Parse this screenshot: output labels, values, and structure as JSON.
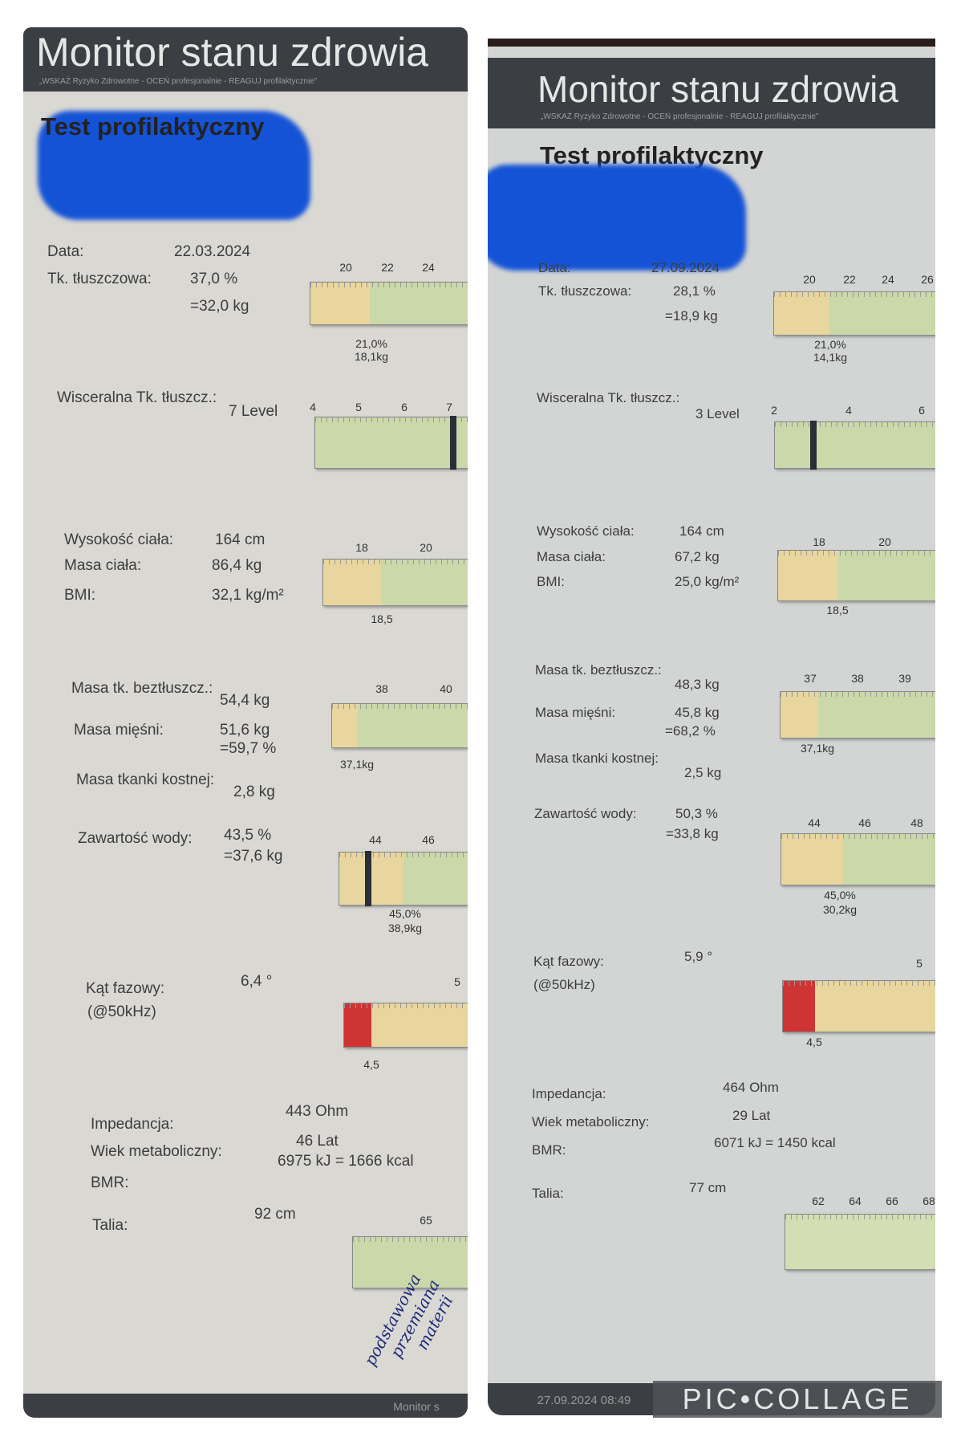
{
  "colors": {
    "header": "#3b3e43",
    "bar_yellow": "#e8d69e",
    "bar_green": "#cbd8aa",
    "bar_red": "#cf3434",
    "redaction": "#1553d6"
  },
  "watermark": "PIC•COLLAGE",
  "left": {
    "title": "Monitor stanu zdrowia",
    "tagline": "„WSKAŻ Ryzyko Zdrowotne - OCEŃ profesjonalnie - REAGUJ profilaktycznie”",
    "heading": "Test profilaktyczny",
    "labels": {
      "date": "Data:",
      "fat": "Tk. tłuszczowa:",
      "visceral": "Wisceralna Tk. tłuszcz.:",
      "height": "Wysokość ciała:",
      "mass": "Masa ciała:",
      "bmi": "BMI:",
      "lean": "Masa tk. beztłuszcz.:",
      "muscle": "Masa mięśni:",
      "bone": "Masa tkanki kostnej:",
      "water": "Zawartość wody:",
      "phase": "Kąt fazowy:",
      "phase_freq": "(@50kHz)",
      "impedance": "Impedancja:",
      "meta_age": "Wiek metaboliczny:",
      "bmr": "BMR:",
      "waist": "Talia:"
    },
    "values": {
      "date": "22.03.2024",
      "fat_pct": "37,0 %",
      "fat_kg": "=32,0 kg",
      "visceral": "7 Level",
      "height": "164 cm",
      "mass": "86,4 kg",
      "bmi": "32,1 kg/m²",
      "lean": "54,4 kg",
      "muscle_kg": "51,6 kg",
      "muscle_pct": "=59,7 %",
      "bone": "2,8 kg",
      "water_pct": "43,5 %",
      "water_kg": "=37,6 kg",
      "phase": "6,4 °",
      "impedance": "443 Ohm",
      "meta_age": "46 Lat",
      "bmr": "6975 kJ = 1666 kcal",
      "waist": "92 cm"
    },
    "scales": {
      "fat": {
        "ticks": [
          "20",
          "22",
          "24"
        ],
        "ref": "21,0%",
        "ref2": "18,1kg"
      },
      "visceral": {
        "ticks": [
          "4",
          "5",
          "6",
          "7"
        ],
        "marker": 7
      },
      "bmi": {
        "ticks": [
          "18",
          "20"
        ],
        "ref": "18,5"
      },
      "lean": {
        "ticks": [
          "38",
          "40"
        ],
        "ref": "37,1kg"
      },
      "water": {
        "ticks": [
          "44",
          "46"
        ],
        "ref": "45,0%",
        "ref2": "38,9kg",
        "marker": 43.5
      },
      "phase": {
        "ticks": [
          "5"
        ],
        "ref": "4,5"
      },
      "waist": {
        "ticks": [
          "65"
        ]
      }
    },
    "handwriting": [
      "podstawowa",
      "przemiana",
      "materii"
    ],
    "footer": "Monitor s"
  },
  "right": {
    "title": "Monitor stanu zdrowia",
    "tagline": "„WSKAŻ Ryzyko Zdrowotne - OCEŃ profesjonalnie - REAGUJ profilaktycznie”",
    "heading": "Test profilaktyczny",
    "labels": {
      "date": "Data:",
      "fat": "Tk. tłuszczowa:",
      "visceral": "Wisceralna Tk. tłuszcz.:",
      "height": "Wysokość ciała:",
      "mass": "Masa ciała:",
      "bmi": "BMI:",
      "lean": "Masa tk. beztłuszcz.:",
      "muscle": "Masa mięśni:",
      "bone": "Masa tkanki kostnej:",
      "water": "Zawartość wody:",
      "phase": "Kąt fazowy:",
      "phase_freq": "(@50kHz)",
      "impedance": "Impedancja:",
      "meta_age": "Wiek metaboliczny:",
      "bmr": "BMR:",
      "waist": "Talia:"
    },
    "values": {
      "date": "27.09.2024",
      "fat_pct": "28,1 %",
      "fat_kg": "=18,9 kg",
      "visceral": "3 Level",
      "height": "164 cm",
      "mass": "67,2 kg",
      "bmi": "25,0 kg/m²",
      "lean": "48,3 kg",
      "muscle_kg": "45,8 kg",
      "muscle_pct": "=68,2 %",
      "bone": "2,5 kg",
      "water_pct": "50,3 %",
      "water_kg": "=33,8 kg",
      "phase": "5,9 °",
      "impedance": "464 Ohm",
      "meta_age": "29 Lat",
      "bmr": "6071 kJ = 1450 kcal",
      "waist": "77 cm"
    },
    "scales": {
      "fat": {
        "ticks": [
          "20",
          "22",
          "24",
          "26"
        ],
        "ref": "21,0%",
        "ref2": "14,1kg"
      },
      "visceral": {
        "ticks": [
          "2",
          "4",
          "6"
        ],
        "marker": 3
      },
      "bmi": {
        "ticks": [
          "18",
          "20"
        ],
        "ref": "18,5"
      },
      "lean": {
        "ticks": [
          "37",
          "38",
          "39"
        ],
        "ref": "37,1kg"
      },
      "water": {
        "ticks": [
          "44",
          "46",
          "48"
        ],
        "ref": "45,0%",
        "ref2": "30,2kg"
      },
      "phase": {
        "ticks": [
          "5"
        ],
        "ref": "4,5"
      },
      "waist": {
        "ticks": [
          "62",
          "64",
          "66",
          "68"
        ]
      }
    },
    "footer": "27.09.2024 08:49"
  }
}
